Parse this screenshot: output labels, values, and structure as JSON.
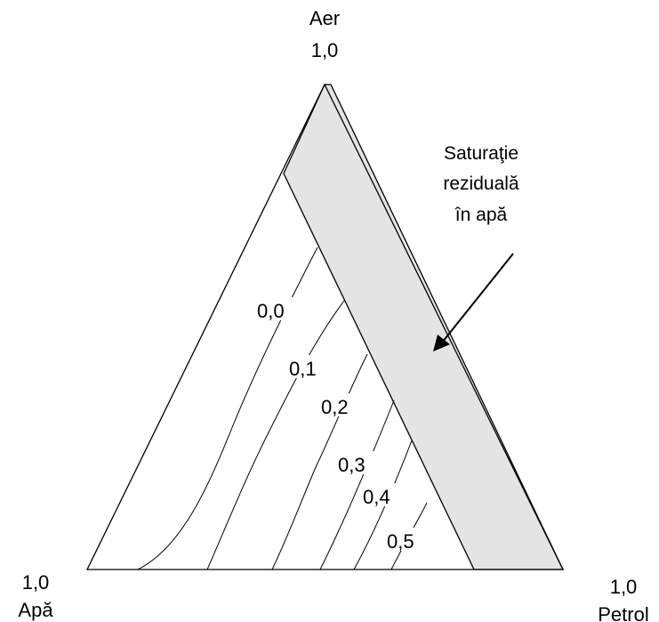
{
  "vertices": {
    "top": {
      "name": "Aer",
      "value": "1,0"
    },
    "left": {
      "value": "1,0",
      "name": "Apă"
    },
    "right": {
      "value": "1,0",
      "name": "Petrol"
    }
  },
  "annotation": {
    "line1": "Saturaţie",
    "line2": "reziduală",
    "line3": "în apă"
  },
  "contours": [
    {
      "label": "0,0"
    },
    {
      "label": "0,1"
    },
    {
      "label": "0,2"
    },
    {
      "label": "0,3"
    },
    {
      "label": "0,4"
    },
    {
      "label": "0,5"
    }
  ],
  "colors": {
    "band": "#e4e4e4",
    "line": "#000000"
  }
}
